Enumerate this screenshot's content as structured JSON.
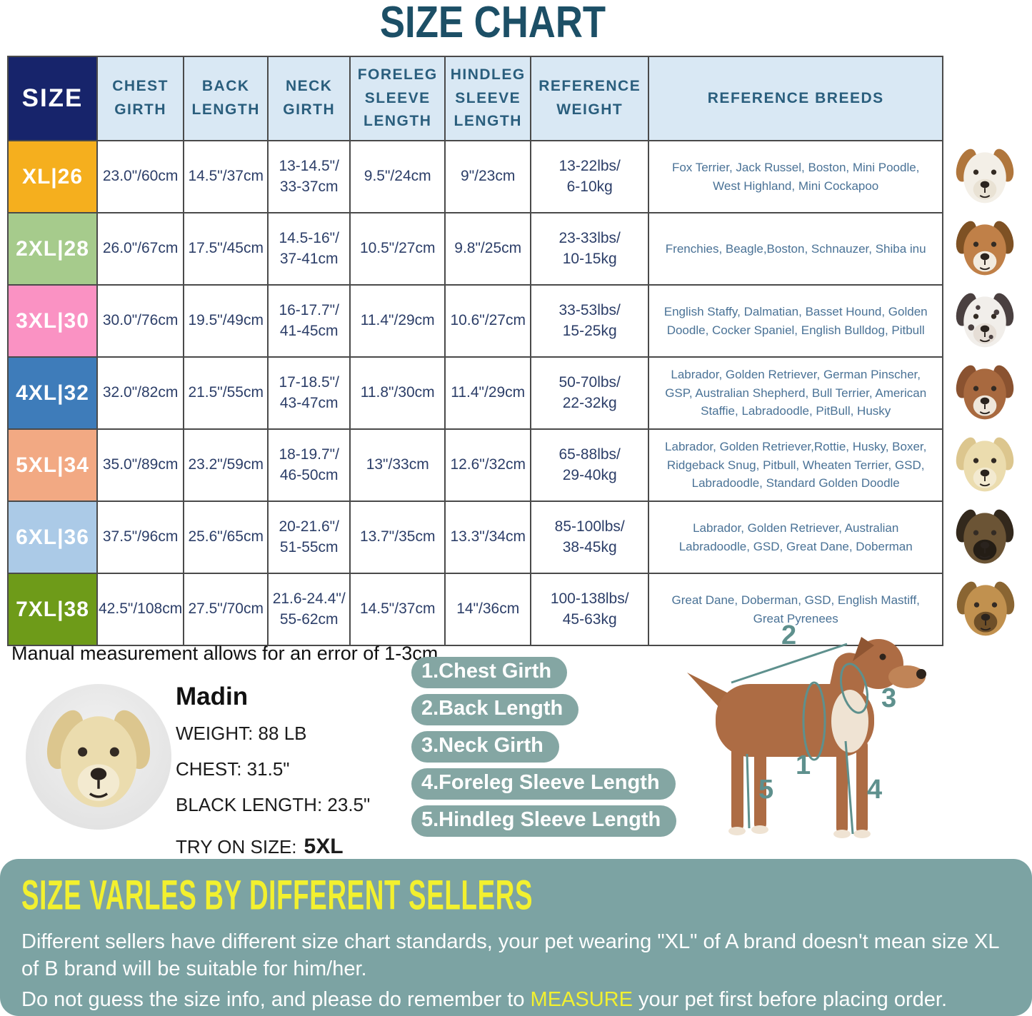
{
  "title": "SIZE CHART",
  "palette": {
    "title_color": "#1C4F66",
    "header_bg": "#D9E8F4",
    "header_text": "#2A5E7D",
    "size_header_bg": "#17246B",
    "value_text": "#2C3E68",
    "breeds_text": "#4A7296",
    "pill_bg": "#84A6A3",
    "panel_bg": "#7CA3A3",
    "accent_yellow": "#F2F02F",
    "diagram_teal": "#5E908D"
  },
  "table": {
    "headers": [
      "SIZE",
      "CHEST GIRTH",
      "BACK LENGTH",
      "NECK GIRTH",
      "FORELEG SLEEVE LENGTH",
      "HINDLEG SLEEVE LENGTH",
      "REFERENCE WEIGHT",
      "REFERENCE BREEDS"
    ],
    "rows": [
      {
        "size": "XL|26",
        "size_color": "#F5AF1E",
        "chest_girth": "23.0\"/60cm",
        "back_length": "14.5\"/37cm",
        "neck_girth": "13-14.5\"/\n33-37cm",
        "foreleg": "9.5\"/24cm",
        "hindleg": "9\"/23cm",
        "weight": "13-22lbs/\n6-10kg",
        "breeds": "Fox Terrier, Jack Russel, Boston, Mini Poodle, West Highland, Mini Cockapoo",
        "photo": {
          "name": "jack-russell-terrier-photo",
          "main": "#F3EFE7",
          "ear": "#B0763C",
          "muzzle": "#E9E2D4",
          "spots": false
        }
      },
      {
        "size": "2XL|28",
        "size_color": "#A6CB8C",
        "chest_girth": "26.0\"/67cm",
        "back_length": "17.5\"/45cm",
        "neck_girth": "14.5-16\"/\n37-41cm",
        "foreleg": "10.5\"/27cm",
        "hindleg": "9.8\"/25cm",
        "weight": "23-33lbs/\n10-15kg",
        "breeds": "Frenchies, Beagle,Boston, Schnauzer, Shiba inu",
        "photo": {
          "name": "beagle-photo",
          "main": "#C08048",
          "ear": "#7E5124",
          "muzzle": "#F2EBDF",
          "spots": false
        }
      },
      {
        "size": "3XL|30",
        "size_color": "#FA92C3",
        "chest_girth": "30.0\"/76cm",
        "back_length": "19.5\"/49cm",
        "neck_girth": "16-17.7\"/\n41-45cm",
        "foreleg": "11.4\"/29cm",
        "hindleg": "10.6\"/27cm",
        "weight": "33-53lbs/\n15-25kg",
        "breeds": "English Staffy, Dalmatian, Basset Hound, Golden Doodle, Cocker Spaniel, English Bulldog, Pitbull",
        "photo": {
          "name": "dalmatian-photo",
          "main": "#F1EEEA",
          "ear": "#4A4040",
          "muzzle": "#E6DED6",
          "spots": true
        }
      },
      {
        "size": "4XL|32",
        "size_color": "#3E7CBA",
        "chest_girth": "32.0\"/82cm",
        "back_length": "21.5\"/55cm",
        "neck_girth": "17-18.5\"/\n43-47cm",
        "foreleg": "11.8\"/30cm",
        "hindleg": "11.4\"/29cm",
        "weight": "50-70lbs/\n22-32kg",
        "breeds": "Labrador, Golden Retriever, German Pinscher, GSP, Australian Shepherd, Bull Terrier, American Staffie, Labradoodle, PitBull, Husky",
        "photo": {
          "name": "american-staffordshire-photo",
          "main": "#A8693F",
          "ear": "#8A5230",
          "muzzle": "#EFE6DA",
          "spots": false
        }
      },
      {
        "size": "5XL|34",
        "size_color": "#F2A983",
        "chest_girth": "35.0\"/89cm",
        "back_length": "23.2\"/59cm",
        "neck_girth": "18-19.7\"/\n46-50cm",
        "foreleg": "13\"/33cm",
        "hindleg": "12.6\"/32cm",
        "weight": "65-88lbs/\n29-40kg",
        "breeds": "Labrador, Golden Retriever,Rottie, Husky, Boxer, Ridgeback Snug, Pitbull, Wheaten Terrier, GSD, Labradoodle,  Standard Golden Doodle",
        "photo": {
          "name": "labrador-photo",
          "main": "#EBDCAE",
          "ear": "#DCC68E",
          "muzzle": "#F3EAD0",
          "spots": false
        }
      },
      {
        "size": "6XL|36",
        "size_color": "#ABCAE7",
        "chest_girth": "37.5\"/96cm",
        "back_length": "25.6\"/65cm",
        "neck_girth": "20-21.6\"/\n51-55cm",
        "foreleg": "13.7\"/35cm",
        "hindleg": "13.3\"/34cm",
        "weight": "85-100lbs/\n38-45kg",
        "breeds": "Labrador, Golden Retriever, Australian Labradoodle, GSD, Great Dane, Doberman",
        "photo": {
          "name": "german-shepherd-photo",
          "main": "#6B5435",
          "ear": "#32281C",
          "muzzle": "#241D15",
          "spots": false
        }
      },
      {
        "size": "7XL|38",
        "size_color": "#6E9B19",
        "chest_girth": "42.5\"/108cm",
        "back_length": "27.5\"/70cm",
        "neck_girth": "21.6-24.4\"/\n55-62cm",
        "foreleg": "14.5\"/37cm",
        "hindleg": "14\"/36cm",
        "weight": "100-138lbs/\n45-63kg",
        "breeds": "Great Dane, Doberman, GSD, English Mastiff, Great Pyrenees",
        "photo": {
          "name": "great-dane-photo",
          "main": "#C1914F",
          "ear": "#8A6532",
          "muzzle": "#6E4F28",
          "spots": false
        }
      }
    ]
  },
  "note": "Manual measurement allows for an error of 1-3cm",
  "model": {
    "name": "Madin",
    "weight": "WEIGHT: 88 LB",
    "chest": "CHEST: 31.5\"",
    "back_length": "BLACK LENGTH: 23.5\"",
    "try_on_label": "TRY ON SIZE:",
    "try_on_size": "5XL",
    "photo": {
      "name": "madin-labrador-photo",
      "main": "#EBDCAE",
      "ear": "#DCC68E",
      "muzzle": "#F3EAD0",
      "spots": false
    }
  },
  "measurements": [
    "1.Chest Girth",
    "2.Back Length",
    "3.Neck Girth",
    "4.Foreleg Sleeve Length",
    "5.Hindleg Sleeve Length"
  ],
  "diagram": {
    "labels": [
      "1",
      "2",
      "3",
      "4",
      "5"
    ]
  },
  "warning": {
    "title": "SIZE VARLES BY DIFFERENT SELLERS",
    "text_1": "Different sellers have different size chart standards, your pet wearing \"XL\" of A brand doesn't mean size XL of B brand will be suitable for him/her.",
    "text_2_before": "Do not guess the size info, and please do remember to ",
    "text_2_highlight": "MEASURE",
    "text_2_after": " your pet first before placing order."
  }
}
